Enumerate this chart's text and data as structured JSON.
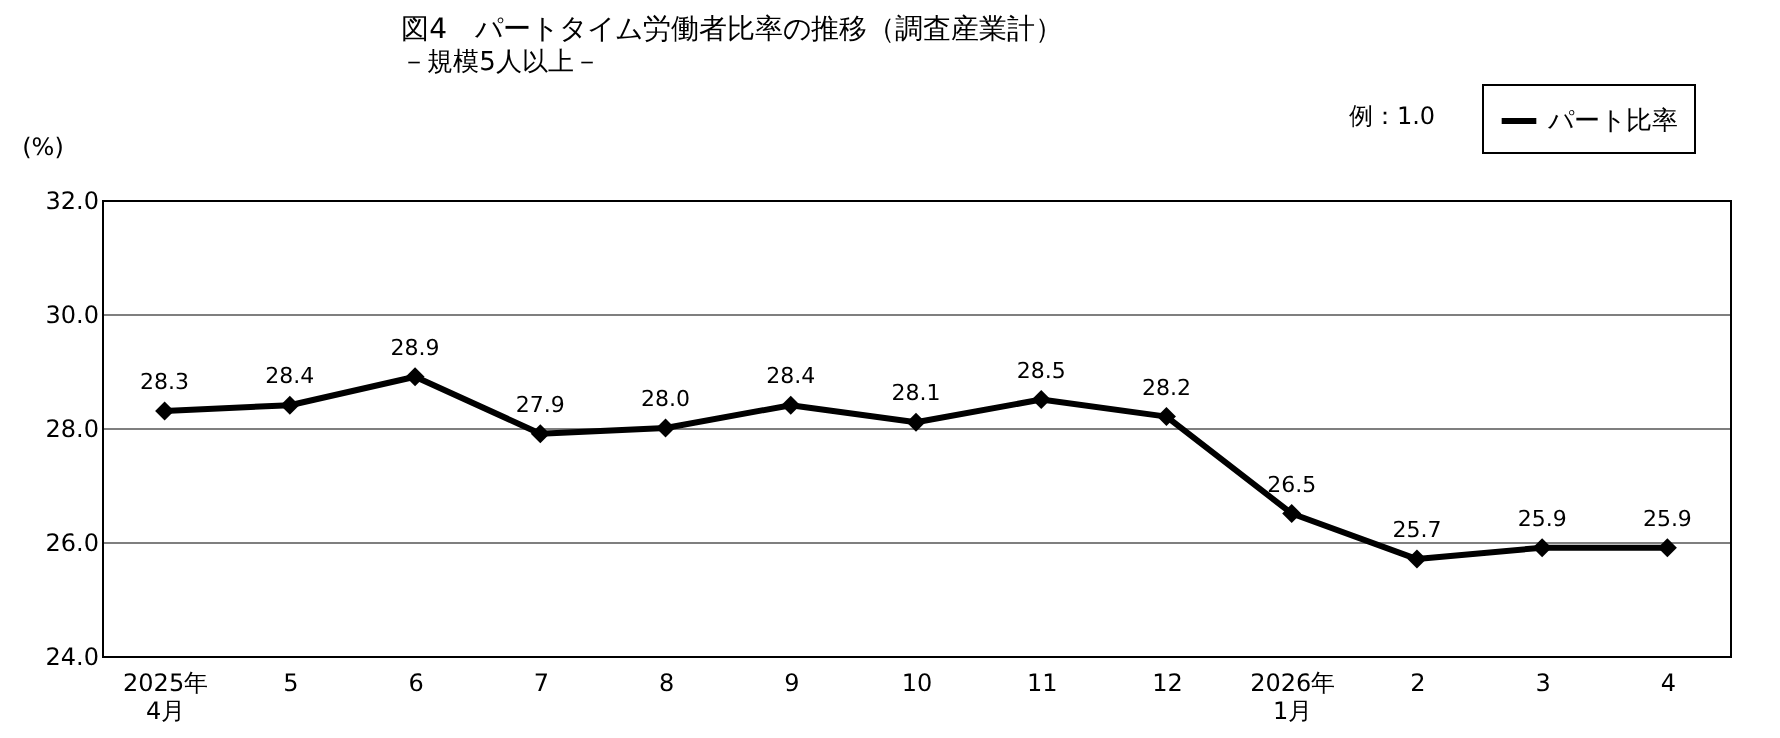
{
  "chart_data": {
    "type": "line",
    "title": "図4　パートタイム労働者比率の推移（調査産業計）",
    "subtitle": "－規模5人以上－",
    "ylabel": "(%)",
    "categories": [
      "2025年\n4月",
      "5",
      "6",
      "7",
      "8",
      "9",
      "10",
      "11",
      "12",
      "2026年\n1月",
      "2",
      "3",
      "4"
    ],
    "series": [
      {
        "name": "パート比率",
        "color": "#000000",
        "values": [
          28.3,
          28.4,
          28.9,
          27.9,
          28.0,
          28.4,
          28.1,
          28.5,
          28.2,
          26.5,
          25.7,
          25.9,
          25.9
        ],
        "value_labels": [
          "28.3",
          "28.4",
          "28.9",
          "27.9",
          "28.0",
          "28.4",
          "28.1",
          "28.5",
          "28.2",
          "26.5",
          "25.7",
          "25.9",
          "25.9"
        ]
      }
    ],
    "ylim": [
      24,
      32
    ],
    "yticks": [
      {
        "value": 24,
        "label": "24.0"
      },
      {
        "value": 26,
        "label": "26.0"
      },
      {
        "value": 28,
        "label": "28.0"
      },
      {
        "value": 30,
        "label": "30.0"
      },
      {
        "value": 32,
        "label": "32.0"
      }
    ],
    "annotations": [
      "例：1.0"
    ],
    "grid": "y",
    "legend": "top right",
    "marker": "diamond",
    "line_style": "solid"
  }
}
